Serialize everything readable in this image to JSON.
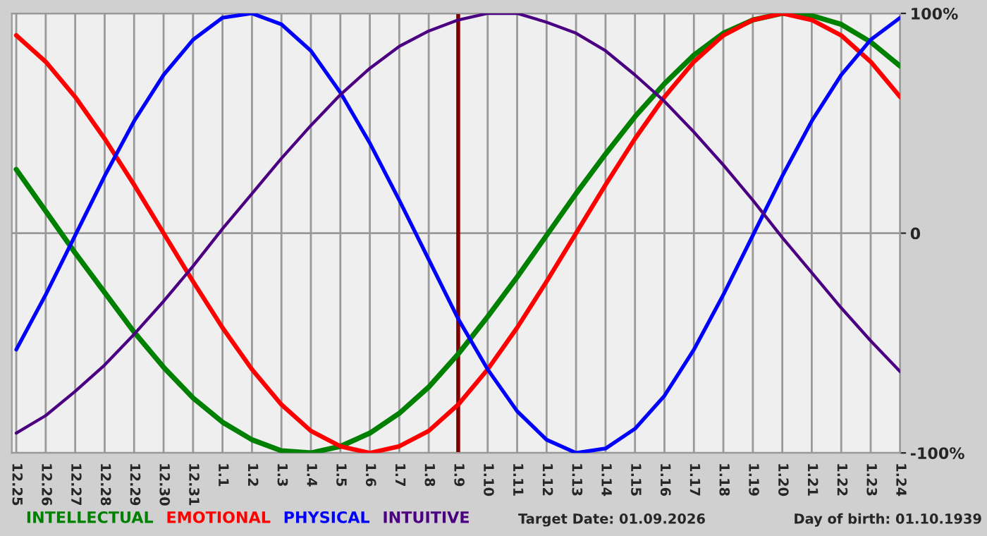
{
  "chart_data": {
    "type": "line",
    "categories": [
      "12.25",
      "12.26",
      "12.27",
      "12.28",
      "12.29",
      "12.30",
      "12.31",
      "1.1",
      "1.2",
      "1.3",
      "1.4",
      "1.5",
      "1.6",
      "1.7",
      "1.8",
      "1.9",
      "1.10",
      "1.11",
      "1.12",
      "1.13",
      "1.14",
      "1.15",
      "1.16",
      "1.17",
      "1.18",
      "1.19",
      "1.20",
      "1.21",
      "1.22",
      "1.23",
      "1.24"
    ],
    "series": [
      {
        "name": "INTELLECTUAL",
        "color": "#008000",
        "values": [
          29,
          10,
          -9,
          -27,
          -45,
          -61,
          -75,
          -86,
          -94,
          -99,
          -100,
          -97,
          -91,
          -82,
          -70,
          -55,
          -38,
          -20,
          -1,
          18,
          36,
          53,
          68,
          81,
          91,
          97,
          100,
          99,
          95,
          87,
          76
        ]
      },
      {
        "name": "EMOTIONAL",
        "color": "#ff0000",
        "values": [
          90,
          78,
          62,
          43,
          22,
          0,
          -22,
          -43,
          -62,
          -78,
          -90,
          -97,
          -100,
          -97,
          -90,
          -78,
          -62,
          -43,
          -22,
          0,
          22,
          43,
          62,
          78,
          90,
          97,
          100,
          97,
          90,
          78,
          62
        ]
      },
      {
        "name": "PHYSICAL",
        "color": "#0000ff",
        "values": [
          -53,
          -28,
          -1,
          26,
          51,
          72,
          88,
          98,
          100,
          95,
          83,
          64,
          41,
          15,
          -12,
          -39,
          -62,
          -81,
          -94,
          -100,
          -98,
          -89,
          -74,
          -53,
          -28,
          -1,
          26,
          51,
          72,
          88,
          98
        ]
      },
      {
        "name": "INTUITIVE",
        "color": "#4b0082",
        "values": [
          -91,
          -83,
          -72,
          -60,
          -46,
          -31,
          -15,
          2,
          18,
          34,
          49,
          63,
          75,
          85,
          92,
          97,
          100,
          100,
          96,
          91,
          83,
          72,
          60,
          46,
          31,
          15,
          -2,
          -18,
          -34,
          -49,
          -63
        ]
      }
    ],
    "ylim": [
      -100,
      100
    ],
    "yticks": [
      {
        "value": -100,
        "label": "-100%"
      },
      0,
      {
        "value": 100,
        "label": "100%"
      }
    ],
    "ref_lines": [
      {
        "axis": "x",
        "value": "1.9",
        "color": "#800000"
      }
    ],
    "annotations": [
      "Target Date: 01.09.2026",
      "Day of birth: 01.10.1939"
    ],
    "grid": true,
    "legend": "bottom",
    "line_style": "solid",
    "marker": "none"
  }
}
